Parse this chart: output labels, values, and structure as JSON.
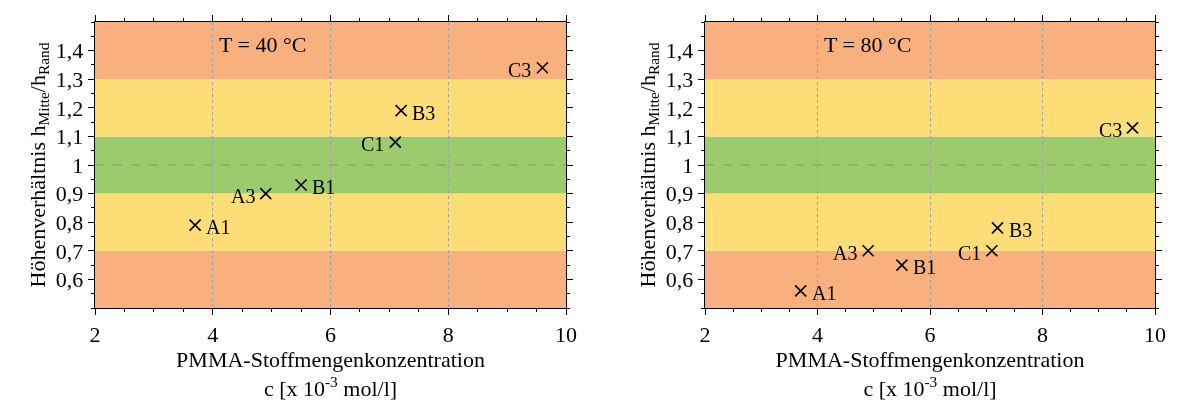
{
  "chart_data": [
    {
      "type": "scatter",
      "xlabel": "PMMA-Stoffmengenkonzentration\nc [x 10$^{-3}$ mol/l]",
      "ylabel": "Höhenverhältnis h$_{Mitte}$/h$_{Rand}$",
      "x": [
        3.7,
        4.9,
        5.5,
        7.1,
        7.2,
        9.6
      ],
      "series": [
        {
          "color": "#000000",
          "values": [
            0.79,
            0.9,
            0.93,
            1.08,
            1.19,
            1.34
          ]
        }
      ],
      "marker": "cross",
      "grid": "x",
      "xlim": [
        2,
        10
      ],
      "xticks": [
        2,
        4,
        6,
        8,
        10
      ],
      "ylim": [
        0.5,
        1.5
      ],
      "yticks": [
        {
          "value": 0.6,
          "label": "0,6"
        },
        {
          "value": 0.7,
          "label": "0,7"
        },
        {
          "value": 0.8,
          "label": "0,8"
        },
        {
          "value": 0.9,
          "label": "0,9"
        },
        1,
        {
          "value": 1.1,
          "label": "1,1"
        },
        {
          "value": 1.2,
          "label": "1,2"
        },
        {
          "value": 1.3,
          "label": "1,3"
        },
        {
          "value": 1.4,
          "label": "1,4"
        }
      ],
      "bands": [
        {
          "axis": "y",
          "from": 0.5,
          "to": 0.7,
          "color": "#f9b07f"
        },
        {
          "axis": "y",
          "from": 0.7,
          "to": 0.9,
          "color": "#fddd75"
        },
        {
          "axis": "y",
          "from": 0.9,
          "to": 1.1,
          "color": "#9ccb6e"
        },
        {
          "axis": "y",
          "from": 1.1,
          "to": 1.3,
          "color": "#fddd75"
        },
        {
          "axis": "y",
          "from": 1.3,
          "to": 1.5,
          "color": "#f9b07f"
        }
      ],
      "ref_lines": [
        {
          "axis": "y",
          "value": 1,
          "color": "#8c8c8c",
          "line_style": "dashed"
        }
      ],
      "annotations": [
        "T = 40 °C",
        {
          "text": "A1",
          "x": 3.7,
          "y": 0.79
        },
        {
          "text": "A3",
          "x": 4.9,
          "y": 0.9
        },
        {
          "text": "B1",
          "x": 5.5,
          "y": 0.93
        },
        {
          "text": "C1",
          "x": 7.1,
          "y": 1.08
        },
        {
          "text": "B3",
          "x": 7.2,
          "y": 1.19
        },
        {
          "text": "C3",
          "x": 9.6,
          "y": 1.34
        }
      ]
    },
    {
      "type": "scatter",
      "xlabel": "PMMA-Stoffmengenkonzentration\nc [x 10$^{-3}$ mol/l]",
      "ylabel": "Höhenverhältnis h$_{Mitte}$/h$_{Rand}$",
      "x": [
        3.7,
        4.9,
        5.5,
        7.1,
        7.2,
        9.6
      ],
      "series": [
        {
          "color": "#000000",
          "values": [
            0.56,
            0.7,
            0.65,
            0.7,
            0.78,
            1.13
          ]
        }
      ],
      "marker": "cross",
      "grid": "x",
      "xlim": [
        2,
        10
      ],
      "xticks": [
        2,
        4,
        6,
        8,
        10
      ],
      "ylim": [
        0.5,
        1.5
      ],
      "yticks": [
        {
          "value": 0.6,
          "label": "0,6"
        },
        {
          "value": 0.7,
          "label": "0,7"
        },
        {
          "value": 0.8,
          "label": "0,8"
        },
        {
          "value": 0.9,
          "label": "0,9"
        },
        1,
        {
          "value": 1.1,
          "label": "1,1"
        },
        {
          "value": 1.2,
          "label": "1,2"
        },
        {
          "value": 1.3,
          "label": "1,3"
        },
        {
          "value": 1.4,
          "label": "1,4"
        }
      ],
      "bands": [
        {
          "axis": "y",
          "from": 0.5,
          "to": 0.7,
          "color": "#f9b07f"
        },
        {
          "axis": "y",
          "from": 0.7,
          "to": 0.9,
          "color": "#fddd75"
        },
        {
          "axis": "y",
          "from": 0.9,
          "to": 1.1,
          "color": "#9ccb6e"
        },
        {
          "axis": "y",
          "from": 1.1,
          "to": 1.3,
          "color": "#fddd75"
        },
        {
          "axis": "y",
          "from": 1.3,
          "to": 1.5,
          "color": "#f9b07f"
        }
      ],
      "ref_lines": [
        {
          "axis": "y",
          "value": 1,
          "color": "#8c8c8c",
          "line_style": "dashed"
        }
      ],
      "annotations": [
        "T = 80 °C",
        {
          "text": "A1",
          "x": 3.7,
          "y": 0.56
        },
        {
          "text": "A3",
          "x": 4.9,
          "y": 0.7
        },
        {
          "text": "B1",
          "x": 5.5,
          "y": 0.65
        },
        {
          "text": "C1",
          "x": 7.1,
          "y": 0.7
        },
        {
          "text": "B3",
          "x": 7.2,
          "y": 0.78
        },
        {
          "text": "C3",
          "x": 9.6,
          "y": 1.13
        }
      ]
    }
  ]
}
